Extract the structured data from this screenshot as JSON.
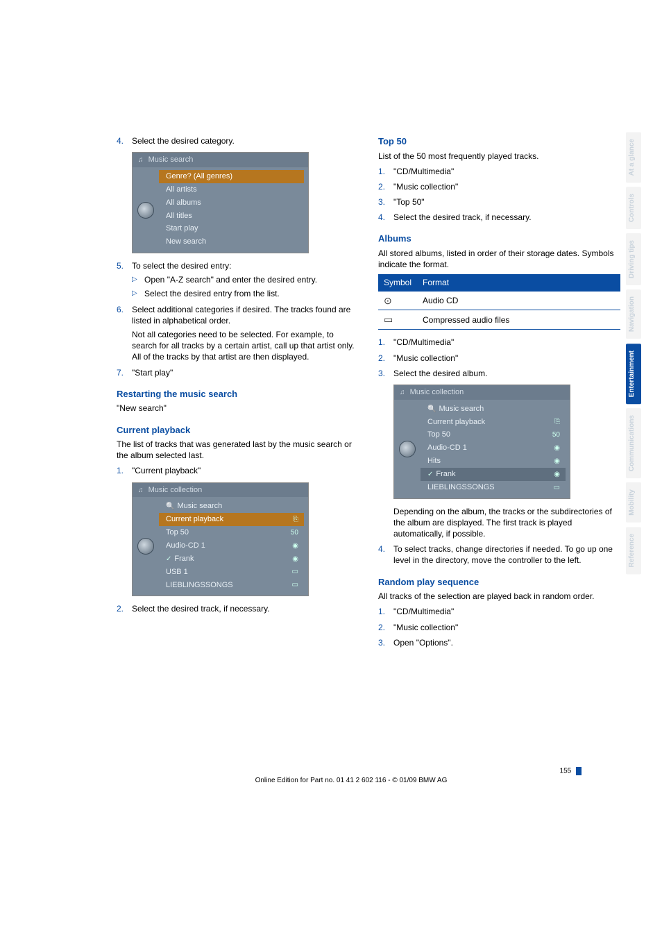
{
  "leftColumn": {
    "step4": {
      "n": "4.",
      "text": "Select the desired category."
    },
    "screenshot1": {
      "title": "Music search",
      "rows": [
        {
          "label": "Genre? (All genres)",
          "hl": true
        },
        {
          "label": "All artists"
        },
        {
          "label": "All albums"
        },
        {
          "label": "All titles"
        },
        {
          "label": "Start play"
        },
        {
          "label": "New search"
        }
      ]
    },
    "step5": {
      "n": "5.",
      "text": "To select the desired entry:",
      "subs": [
        "Open \"A-Z search\" and enter the desired entry.",
        "Select the desired entry from the list."
      ]
    },
    "step6": {
      "n": "6.",
      "text": "Select additional categories if desired. The tracks found are listed in alphabetical order.",
      "para": "Not all categories need to be selected. For example, to search for all tracks by a certain artist, call up that artist only. All of the tracks by that artist are then displayed."
    },
    "step7": {
      "n": "7.",
      "text": "\"Start play\""
    },
    "restartHeading": "Restarting the music search",
    "restartText": "\"New search\"",
    "currentHeading": "Current playback",
    "currentPara": "The list of tracks that was generated last by the music search or the album selected last.",
    "currentStep1": {
      "n": "1.",
      "text": "\"Current playback\""
    },
    "screenshot2": {
      "title": "Music collection",
      "rows": [
        {
          "label": "Music search",
          "icon": "search"
        },
        {
          "label": "Current playback",
          "right": "⎘",
          "hl": true
        },
        {
          "label": "Top 50",
          "right": "50"
        },
        {
          "label": "Audio-CD 1",
          "right": "◉"
        },
        {
          "label": "Frank",
          "right": "◉",
          "check": true
        },
        {
          "label": "USB 1",
          "right": "▭"
        },
        {
          "label": "LIEBLINGSSONGS",
          "right": "▭"
        }
      ]
    },
    "currentStep2": {
      "n": "2.",
      "text": "Select the desired track, if necessary."
    }
  },
  "rightColumn": {
    "top50Heading": "Top 50",
    "top50Intro": "List of the 50 most frequently played tracks.",
    "top50Steps": [
      {
        "n": "1.",
        "text": "\"CD/Multimedia\""
      },
      {
        "n": "2.",
        "text": "\"Music collection\""
      },
      {
        "n": "3.",
        "text": "\"Top 50\""
      },
      {
        "n": "4.",
        "text": "Select the desired track, if necessary."
      }
    ],
    "albumsHeading": "Albums",
    "albumsIntro": "All stored albums, listed in order of their storage dates. Symbols indicate the format.",
    "table": {
      "h1": "Symbol",
      "h2": "Format",
      "rows": [
        {
          "sym": "⊙",
          "fmt": "Audio CD"
        },
        {
          "sym": "▭",
          "fmt": "Compressed audio files"
        }
      ]
    },
    "albumsSteps": [
      {
        "n": "1.",
        "text": "\"CD/Multimedia\""
      },
      {
        "n": "2.",
        "text": "\"Music collection\""
      },
      {
        "n": "3.",
        "text": "Select the desired album."
      }
    ],
    "screenshot3": {
      "title": "Music collection",
      "rows": [
        {
          "label": "Music search",
          "icon": "search"
        },
        {
          "label": "Current playback",
          "right": "⎘"
        },
        {
          "label": "Top 50",
          "right": "50"
        },
        {
          "label": "Audio-CD 1",
          "right": "◉"
        },
        {
          "label": "Hits",
          "right": "◉"
        },
        {
          "label": "Frank",
          "right": "◉",
          "check": true,
          "sel": true
        },
        {
          "label": "LIEBLINGSSONGS",
          "right": "▭"
        }
      ]
    },
    "afterSS": "Depending on the album, the tracks or the subdirectories of the album are displayed. The first track is played automatically, if possible.",
    "step4": {
      "n": "4.",
      "text": "To select tracks, change directories if needed. To go up one level in the directory, move the controller to the left."
    },
    "randomHeading": "Random play sequence",
    "randomIntro": "All tracks of the selection are played back in random order.",
    "randomSteps": [
      {
        "n": "1.",
        "text": "\"CD/Multimedia\""
      },
      {
        "n": "2.",
        "text": "\"Music collection\""
      },
      {
        "n": "3.",
        "text": "Open \"Options\"."
      }
    ]
  },
  "sideTabs": [
    {
      "label": "At a glance",
      "active": false
    },
    {
      "label": "Controls",
      "active": false
    },
    {
      "label": "Driving tips",
      "active": false
    },
    {
      "label": "Navigation",
      "active": false
    },
    {
      "label": "Entertainment",
      "active": true
    },
    {
      "label": "Communications",
      "active": false
    },
    {
      "label": "Mobility",
      "active": false
    },
    {
      "label": "Reference",
      "active": false
    }
  ],
  "footer": {
    "page": "155",
    "line": "Online Edition for Part no. 01 41 2 602 116 - © 01/09 BMW AG"
  }
}
